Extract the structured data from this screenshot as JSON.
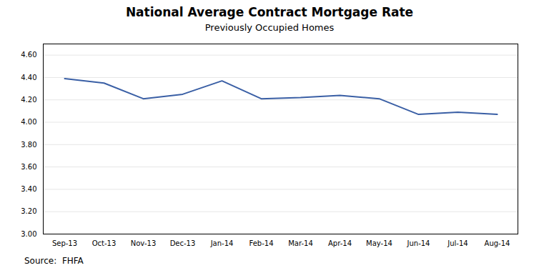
{
  "chart_data": {
    "type": "line",
    "title": "National Average Contract Mortgage Rate",
    "subtitle": "Previously Occupied Homes",
    "source": "Source:  FHFA",
    "categories": [
      "Sep-13",
      "Oct-13",
      "Nov-13",
      "Dec-13",
      "Jan-14",
      "Feb-14",
      "Mar-14",
      "Apr-14",
      "May-14",
      "Jun-14",
      "Jul-14",
      "Aug-14"
    ],
    "values": [
      4.39,
      4.35,
      4.21,
      4.25,
      4.37,
      4.21,
      4.22,
      4.24,
      4.21,
      4.07,
      4.09,
      4.07
    ],
    "color": "#3a5fa5",
    "ylim": [
      3.0,
      4.7
    ],
    "yticks": [
      {
        "value": 3.0,
        "label": "3.00"
      },
      {
        "value": 3.2,
        "label": "3.20"
      },
      {
        "value": 3.4,
        "label": "3.40"
      },
      {
        "value": 3.6,
        "label": "3.60"
      },
      {
        "value": 3.8,
        "label": "3.80"
      },
      {
        "value": 4.0,
        "label": "4.00"
      },
      {
        "value": 4.2,
        "label": "4.20"
      },
      {
        "value": 4.4,
        "label": "4.40"
      },
      {
        "value": 4.6,
        "label": "4.60"
      }
    ],
    "grid": true
  }
}
